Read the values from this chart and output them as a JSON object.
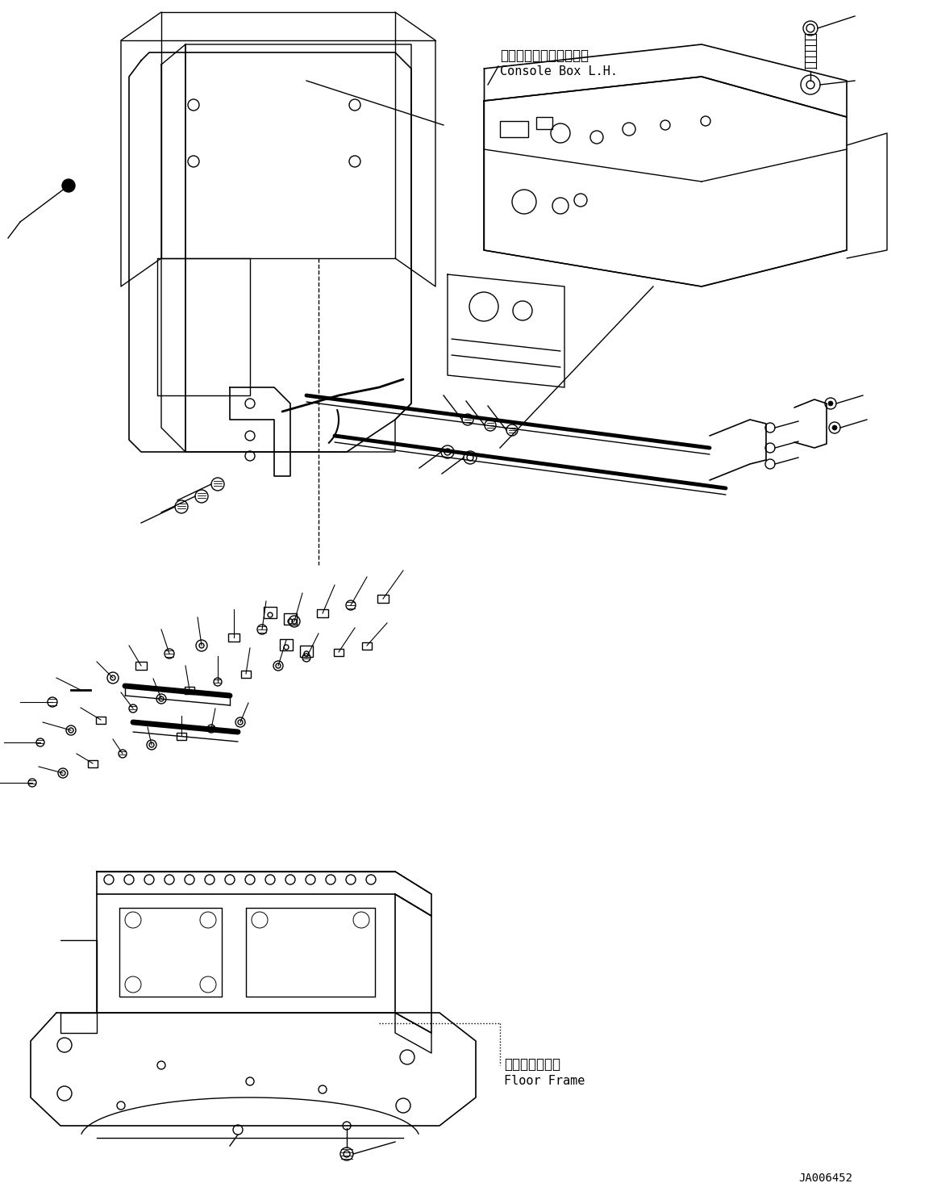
{
  "background_color": "#ffffff",
  "line_color": "#000000",
  "fig_width": 11.57,
  "fig_height": 14.92,
  "dpi": 100,
  "label1_jp": "コンソールボックス　左",
  "label1_en": "Console Box L.H.",
  "label2_jp": "フロアフレーム",
  "label2_en": "Floor Frame",
  "watermark": "JA006452"
}
